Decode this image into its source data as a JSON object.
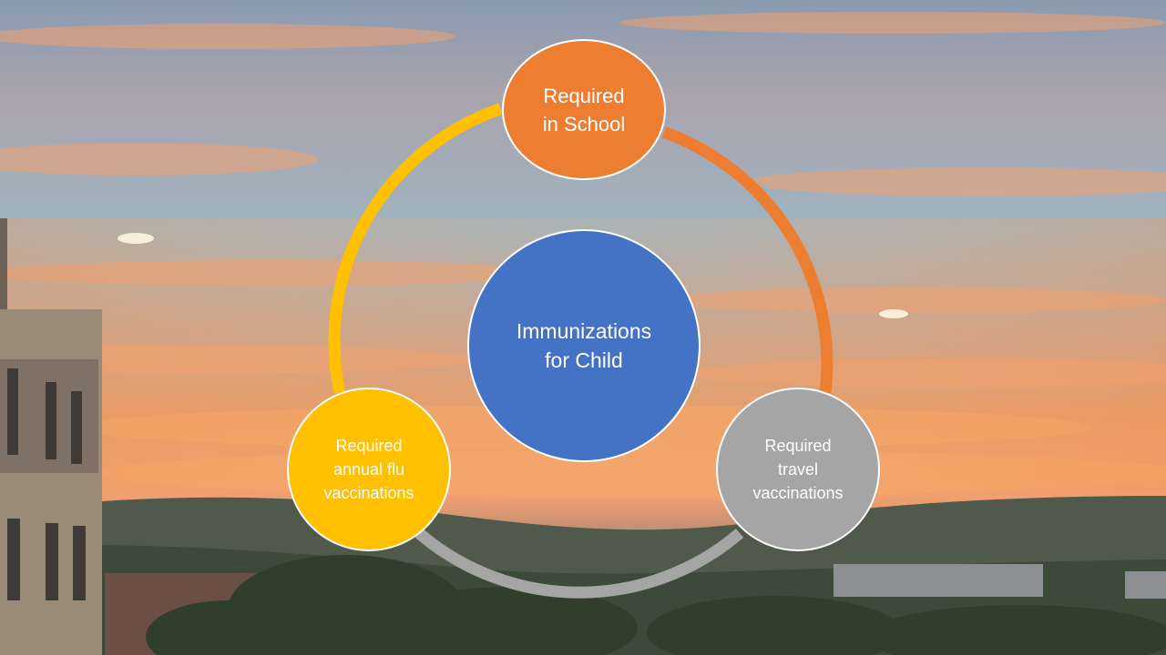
{
  "diagram": {
    "colors": {
      "center": "#4472C4",
      "school": "#ED7D31",
      "travel": "#A5A5A5",
      "flu": "#FFC000"
    },
    "center": {
      "label": "Immunizations\nfor Child"
    },
    "nodes": [
      {
        "id": "school",
        "label": "Required\nin School"
      },
      {
        "id": "travel",
        "label": "Required\ntravel\nvaccinations"
      },
      {
        "id": "flu",
        "label": "Required\nannual flu\nvaccinations"
      }
    ]
  }
}
